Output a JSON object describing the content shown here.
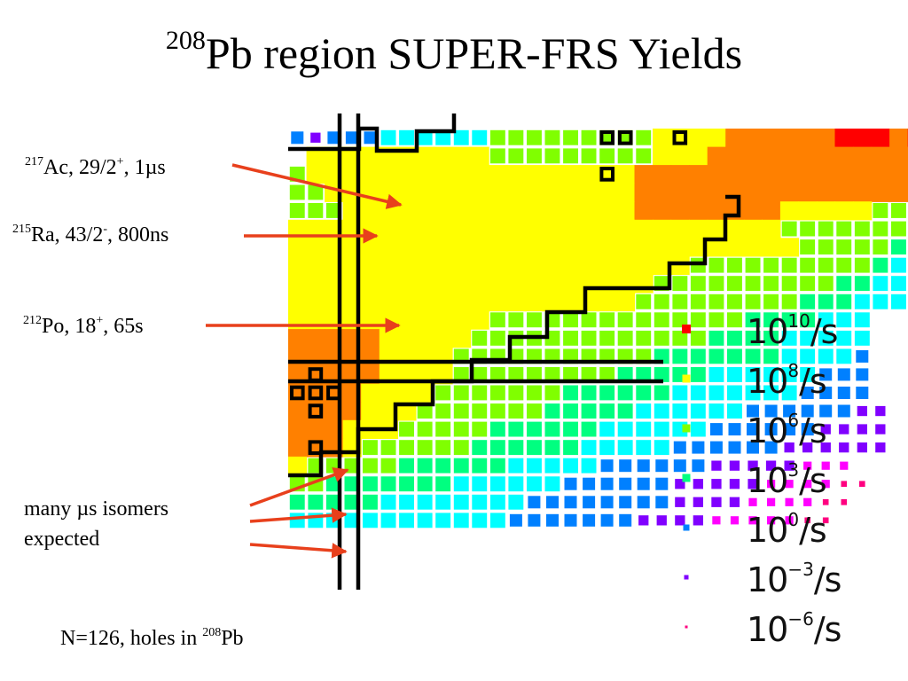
{
  "title": {
    "mass": "208",
    "text": "Pb region SUPER-FRS Yields"
  },
  "annotations": [
    {
      "id": "ac217",
      "mass": "217",
      "element": "Ac, 29/2",
      "sign": "+",
      "rest": ", 1µs"
    },
    {
      "id": "ra215",
      "mass": "215",
      "element": "Ra, 43/2",
      "sign": "-",
      "rest": ", 800ns"
    },
    {
      "id": "po212",
      "mass": "212",
      "element": "Po, 18",
      "sign": "+",
      "rest": ", 65s"
    }
  ],
  "isomer_note": {
    "line1": "many µs isomers",
    "line2": "expected"
  },
  "bottom_note": {
    "text": "N=126, holes in ",
    "mass": "208",
    "element": "Pb"
  },
  "legend": [
    {
      "base": "10",
      "exp": "10",
      "unit": "/s",
      "color": "#ff0000"
    },
    {
      "base": "10",
      "exp": "8",
      "unit": "/s",
      "color": "#ffff00"
    },
    {
      "base": "10",
      "exp": "6",
      "unit": "/s",
      "color": "#80ff00"
    },
    {
      "base": "10",
      "exp": "3",
      "unit": "/s",
      "color": "#00ff80"
    },
    {
      "base": "10",
      "exp": "0",
      "unit": "/s",
      "color": "#0080ff"
    },
    {
      "base": "10",
      "exp": "−3",
      "unit": "/s",
      "color": "#8000ff"
    },
    {
      "base": "10",
      "exp": "−6",
      "unit": "/s",
      "color": "#ff0080"
    }
  ],
  "colors": {
    "red": "#ff0000",
    "orange": "#ff8000",
    "yellow": "#ffff00",
    "lime": "#80ff00",
    "green": "#00ff80",
    "cyan": "#00ffff",
    "blue": "#0080ff",
    "navy": "#0000ff",
    "violet": "#8000ff",
    "magenta": "#ff00ff",
    "pink": "#ff0080",
    "arrow": "#e8401c"
  },
  "chart_data": {
    "type": "heatmap",
    "yield_levels": [
      "10^10/s",
      "10^8/s",
      "10^6/s",
      "10^3/s",
      "10^0/s",
      "10^-3/s",
      "10^-6/s"
    ],
    "grid_codes": "r=red o=orange y=yellow l=lime g=green c=cyan b=blue n=navy v=violet m=magenta p=pink .=empty",
    "grid_rows": [
      "bvbbbcccccclllllllllyyyyoooooorrrorr",
      ".yyyyyyyyyylllllllllyyyoooooooooooooo",
      "lyyyyyyyyyyyyyyyyyyooooooooooooooooo",
      "llyyyyyyyyyyyyyyyyyoooooooooooooooll",
      "lllyyyyyyyyyyyyyyyyooooooooyyyyylll",
      "yyyyyyyyyyyyyyyyyyyyyyyyyyyllllllll",
      "yyyyyyyyyyyyyyyyyyyyyyyyyyyylllllgg",
      "yyyyyyyyyyyyyyyyyyyyyyllllllllllgc",
      "yyyyyyyyyyyyyyyyyyyyllllllllllggcc",
      "yyyyyyyyyyyyyyyyyyylllllllllgggccc",
      "yyyyyyyyyyyllllllllllllllggggccc..",
      "oooooyyyyylllllllllllllggggccccc..",
      "oooooyyyylllllllllllgggggggccccb..",
      "oooooyyyylllllllllgggggccccccbbb..",
      "ooooyyyylllllllggggggcccccccbbbb..",
      "ooooyyylllllllgggggccccccbbbbbbvv.",
      "oooyyylllllggggggccccccbbbbbbvvvv.",
      "oooyllllllggggggcccccbbbbbbvvvvvv.",
      "ylllllggggggcccccbbbbbbvvvvvmmm...",
      "llgggggggccccccbbbbbbvvvvvmmmmpp..",
      "gggggccccccccbbbbbbbbvvvvmmmmpp...",
      "ccccccccccccbbbbbbbvvvvmmmmmpp...."
    ],
    "outlined_cells": [
      [
        0,
        17
      ],
      [
        0,
        18
      ],
      [
        0,
        21
      ],
      [
        2,
        17
      ],
      [
        13,
        1
      ],
      [
        14,
        0
      ],
      [
        14,
        1
      ],
      [
        14,
        2
      ],
      [
        15,
        1
      ],
      [
        17,
        1
      ]
    ]
  }
}
